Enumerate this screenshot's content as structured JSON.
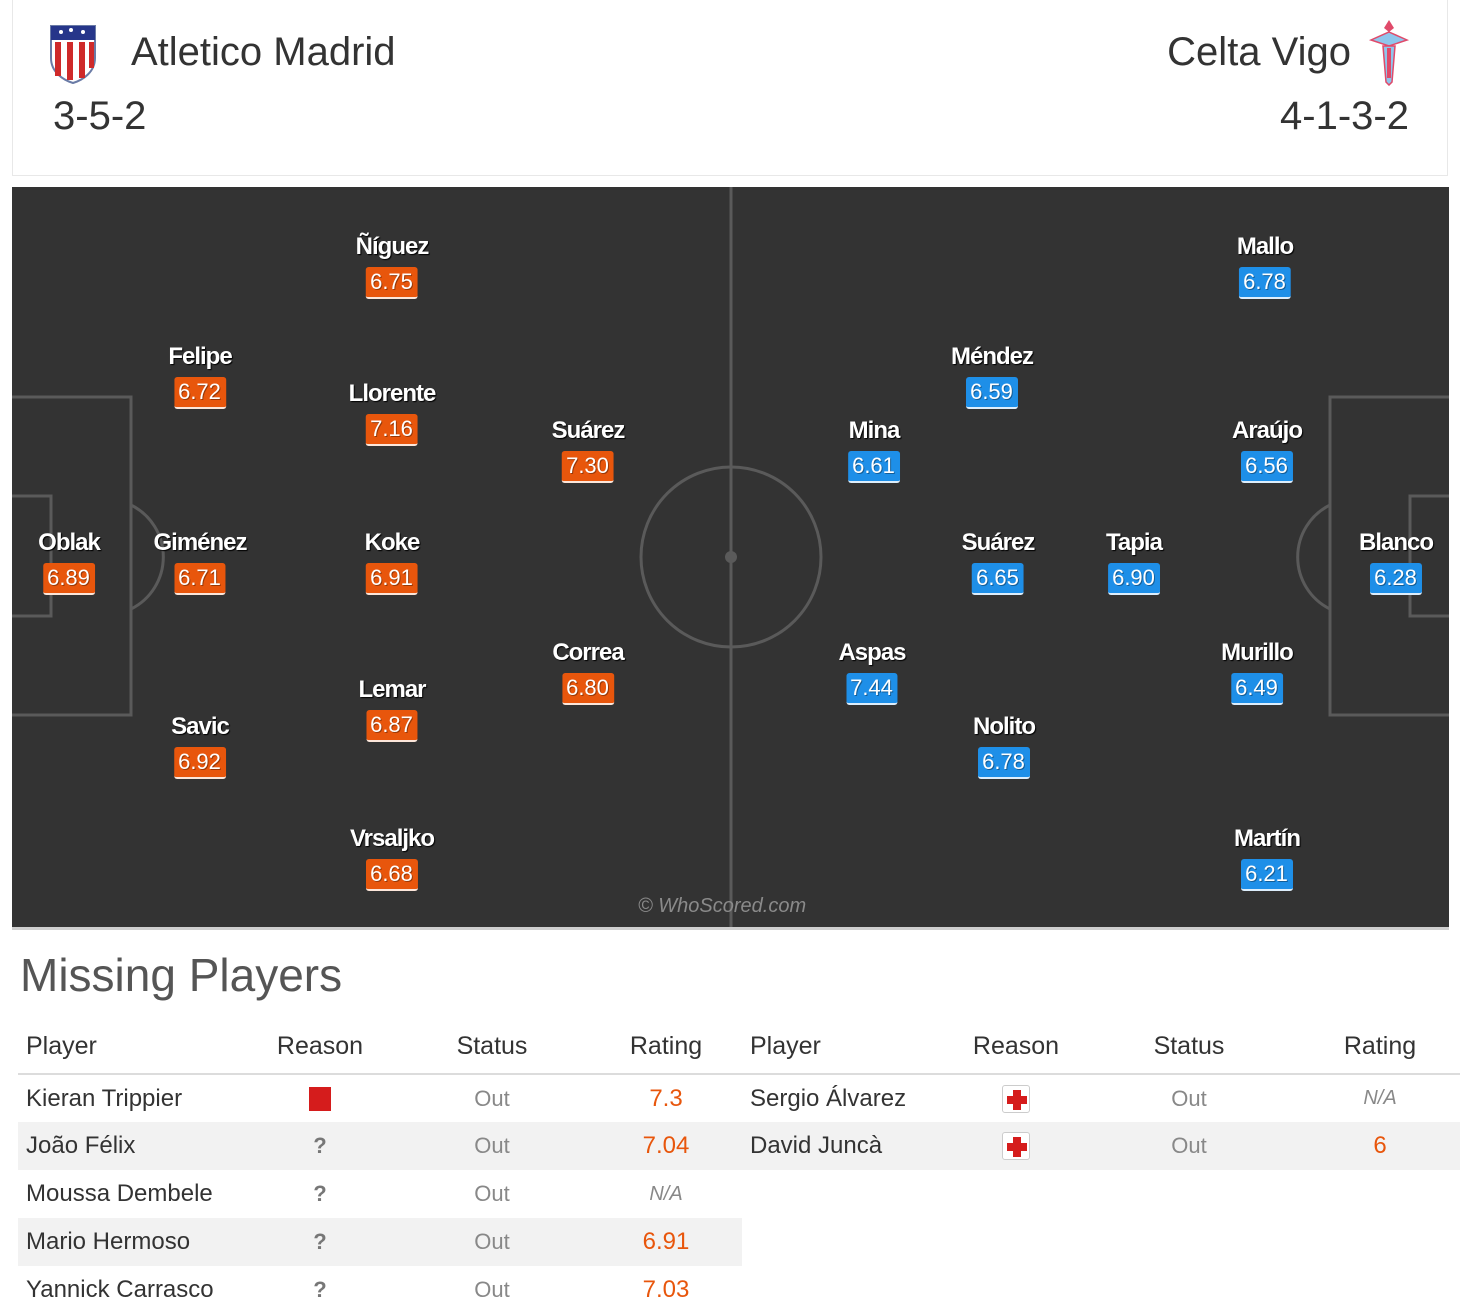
{
  "match": {
    "home": {
      "name": "Atletico Madrid",
      "formation": "3-5-2",
      "crest_icon": "atletico-crest-icon"
    },
    "away": {
      "name": "Celta Vigo",
      "formation": "4-1-3-2",
      "crest_icon": "celta-crest-icon"
    }
  },
  "colors": {
    "home_rating": "#e8560c",
    "away_rating": "#1e8fe8",
    "pitch": "#333333"
  },
  "pitch": {
    "watermark": "© WhoScored.com",
    "home_players": [
      {
        "name": "Ñíguez",
        "rating": "6.75"
      },
      {
        "name": "Felipe",
        "rating": "6.72"
      },
      {
        "name": "Llorente",
        "rating": "7.16"
      },
      {
        "name": "Suárez",
        "rating": "7.30"
      },
      {
        "name": "Oblak",
        "rating": "6.89"
      },
      {
        "name": "Giménez",
        "rating": "6.71"
      },
      {
        "name": "Koke",
        "rating": "6.91"
      },
      {
        "name": "Correa",
        "rating": "6.80"
      },
      {
        "name": "Lemar",
        "rating": "6.87"
      },
      {
        "name": "Savic",
        "rating": "6.92"
      },
      {
        "name": "Vrsaljko",
        "rating": "6.68"
      }
    ],
    "away_players": [
      {
        "name": "Mallo",
        "rating": "6.78"
      },
      {
        "name": "Méndez",
        "rating": "6.59"
      },
      {
        "name": "Mina",
        "rating": "6.61"
      },
      {
        "name": "Araújo",
        "rating": "6.56"
      },
      {
        "name": "Suárez",
        "rating": "6.65"
      },
      {
        "name": "Tapia",
        "rating": "6.90"
      },
      {
        "name": "Blanco",
        "rating": "6.28"
      },
      {
        "name": "Aspas",
        "rating": "7.44"
      },
      {
        "name": "Murillo",
        "rating": "6.49"
      },
      {
        "name": "Nolito",
        "rating": "6.78"
      },
      {
        "name": "Martín",
        "rating": "6.21"
      }
    ]
  },
  "missing": {
    "title": "Missing Players",
    "headers": {
      "player": "Player",
      "reason": "Reason",
      "status": "Status",
      "rating": "Rating"
    },
    "home": [
      {
        "player": "Kieran Trippier",
        "reason_icon": "red-card-icon",
        "status": "Out",
        "rating": "7.3"
      },
      {
        "player": "João Félix",
        "reason_icon": "question-icon",
        "reason_text": "?",
        "status": "Out",
        "rating": "7.04"
      },
      {
        "player": "Moussa Dembele",
        "reason_icon": "question-icon",
        "reason_text": "?",
        "status": "Out",
        "rating": "N/A"
      },
      {
        "player": "Mario Hermoso",
        "reason_icon": "question-icon",
        "reason_text": "?",
        "status": "Out",
        "rating": "6.91"
      },
      {
        "player": "Yannick Carrasco",
        "reason_icon": "question-icon",
        "reason_text": "?",
        "status": "Out",
        "rating": "7.03"
      }
    ],
    "away": [
      {
        "player": "Sergio Álvarez",
        "reason_icon": "injury-icon",
        "status": "Out",
        "rating": "N/A"
      },
      {
        "player": "David Juncà",
        "reason_icon": "injury-icon",
        "status": "Out",
        "rating": "6"
      }
    ]
  }
}
